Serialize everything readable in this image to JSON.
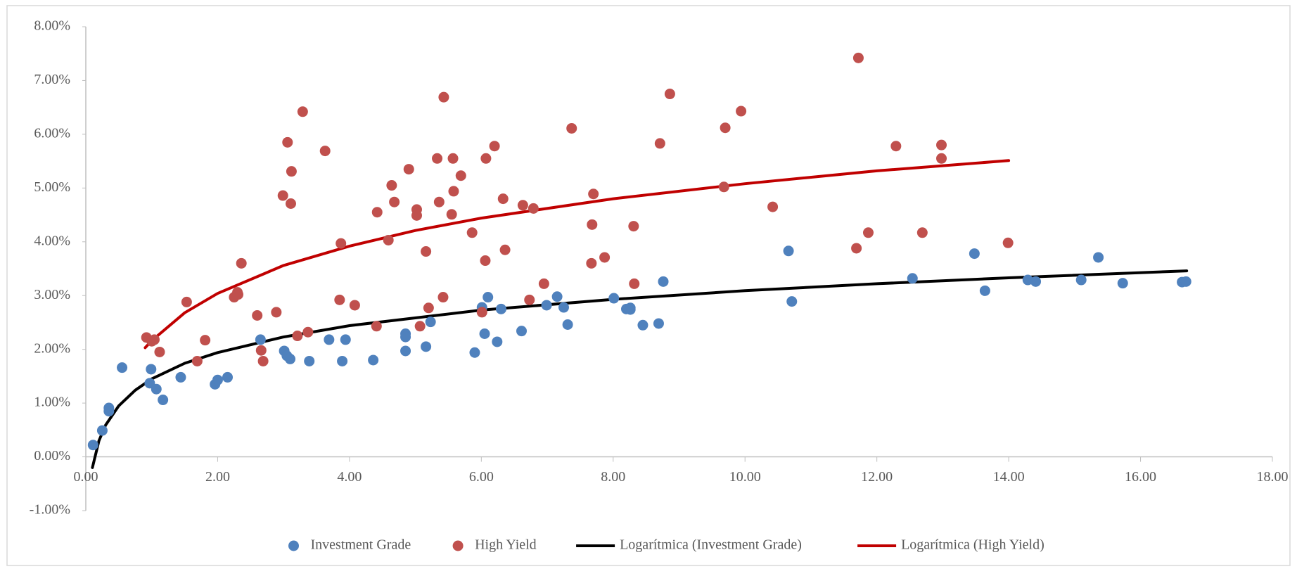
{
  "chart_data": {
    "type": "scatter",
    "xlim": [
      0,
      18
    ],
    "xticks": [
      {
        "value": 0,
        "label": "0.00"
      },
      {
        "value": 2,
        "label": "2.00"
      },
      {
        "value": 4,
        "label": "4.00"
      },
      {
        "value": 6,
        "label": "6.00"
      },
      {
        "value": 8,
        "label": "8.00"
      },
      {
        "value": 10,
        "label": "10.00"
      },
      {
        "value": 12,
        "label": "12.00"
      },
      {
        "value": 14,
        "label": "14.00"
      },
      {
        "value": 16,
        "label": "16.00"
      },
      {
        "value": 18,
        "label": "18.00"
      }
    ],
    "ylim": [
      -1,
      8
    ],
    "yticks": [
      {
        "value": -1,
        "label": "-1.00%"
      },
      {
        "value": 0,
        "label": "0.00%"
      },
      {
        "value": 1,
        "label": "1.00%"
      },
      {
        "value": 2,
        "label": "2.00%"
      },
      {
        "value": 3,
        "label": "3.00%"
      },
      {
        "value": 4,
        "label": "4.00%"
      },
      {
        "value": 5,
        "label": "5.00%"
      },
      {
        "value": 6,
        "label": "6.00%"
      },
      {
        "value": 7,
        "label": "7.00%"
      },
      {
        "value": 8,
        "label": "8.00%"
      }
    ],
    "grid": false,
    "legend": "bottom",
    "series": [
      {
        "name": "Investment Grade",
        "color": "#4f81bd",
        "mode": "points",
        "x": [
          0.11,
          0.25,
          0.35,
          0.35,
          0.55,
          0.97,
          0.99,
          1.07,
          1.17,
          1.44,
          1.96,
          2.0,
          2.15,
          2.65,
          3.01,
          3.05,
          3.1,
          3.39,
          3.69,
          3.89,
          3.94,
          4.36,
          4.85,
          4.85,
          4.85,
          5.16,
          5.23,
          5.9,
          6.01,
          6.05,
          6.1,
          6.24,
          6.3,
          6.61,
          6.99,
          7.15,
          7.25,
          7.31,
          8.01,
          8.2,
          8.26,
          8.26,
          8.45,
          8.69,
          8.76,
          10.66,
          10.71,
          12.54,
          13.48,
          13.64,
          14.29,
          14.41,
          15.1,
          15.36,
          15.73,
          16.63,
          16.69
        ],
        "values": [
          0.22,
          0.49,
          0.91,
          0.85,
          1.66,
          1.37,
          1.63,
          1.26,
          1.06,
          1.48,
          1.35,
          1.43,
          1.48,
          2.18,
          1.97,
          1.88,
          1.82,
          1.78,
          2.18,
          1.78,
          2.18,
          1.8,
          2.29,
          2.23,
          1.97,
          2.05,
          2.51,
          1.94,
          2.78,
          2.29,
          2.97,
          2.14,
          2.75,
          2.34,
          2.82,
          2.98,
          2.78,
          2.46,
          2.95,
          2.75,
          2.77,
          2.74,
          2.45,
          2.48,
          3.26,
          3.83,
          2.89,
          3.32,
          3.78,
          3.09,
          3.29,
          3.26,
          3.29,
          3.71,
          3.23,
          3.25,
          3.26
        ]
      },
      {
        "name": "High Yield",
        "color": "#c0504d",
        "mode": "points",
        "x": [
          0.92,
          1.0,
          1.04,
          1.12,
          1.53,
          1.69,
          1.81,
          2.25,
          2.3,
          2.31,
          2.36,
          2.6,
          2.66,
          2.69,
          2.89,
          2.99,
          3.06,
          3.11,
          3.12,
          3.21,
          3.29,
          3.37,
          3.63,
          3.85,
          3.87,
          4.08,
          4.41,
          4.42,
          4.59,
          4.64,
          4.68,
          4.9,
          5.02,
          5.02,
          5.07,
          5.16,
          5.2,
          5.33,
          5.36,
          5.42,
          5.43,
          5.55,
          5.57,
          5.58,
          5.69,
          5.86,
          6.01,
          6.06,
          6.07,
          6.2,
          6.33,
          6.36,
          6.63,
          6.73,
          6.79,
          6.95,
          7.37,
          7.67,
          7.68,
          7.7,
          7.87,
          8.31,
          8.32,
          8.71,
          8.86,
          9.68,
          9.7,
          9.94,
          10.42,
          11.69,
          11.72,
          11.87,
          12.29,
          12.69,
          12.98,
          12.98,
          13.99
        ],
        "values": [
          2.22,
          2.15,
          2.18,
          1.95,
          2.88,
          1.78,
          2.17,
          2.97,
          3.06,
          3.02,
          3.6,
          2.63,
          1.98,
          1.78,
          2.69,
          4.86,
          5.85,
          4.71,
          5.31,
          2.25,
          6.42,
          2.32,
          5.69,
          2.92,
          3.97,
          2.82,
          2.43,
          4.55,
          4.03,
          5.05,
          4.74,
          5.35,
          4.6,
          4.49,
          2.43,
          3.82,
          2.77,
          5.55,
          4.74,
          2.97,
          6.69,
          4.51,
          5.55,
          4.94,
          5.23,
          4.17,
          2.69,
          3.65,
          5.55,
          5.78,
          4.8,
          3.85,
          4.68,
          2.92,
          4.62,
          3.22,
          6.11,
          3.6,
          4.32,
          4.89,
          3.71,
          4.29,
          3.22,
          5.83,
          6.75,
          5.02,
          6.12,
          6.43,
          4.65,
          3.88,
          7.42,
          4.17,
          5.78,
          4.17,
          5.8,
          5.55,
          3.98
        ]
      },
      {
        "name": "Logarítmica (Investment Grade)",
        "color": "#000000",
        "mode": "line",
        "x": [
          0.1,
          0.2,
          0.3,
          0.5,
          0.75,
          1,
          1.5,
          2,
          3,
          4,
          6,
          8,
          10,
          12,
          14,
          16.7
        ],
        "values": [
          -0.2,
          0.3,
          0.59,
          0.95,
          1.24,
          1.45,
          1.74,
          1.94,
          2.23,
          2.44,
          2.73,
          2.93,
          3.09,
          3.22,
          3.33,
          3.46
        ]
      },
      {
        "name": "Logarítmica (High Yield)",
        "color": "#c00000",
        "mode": "line",
        "x": [
          0.9,
          1,
          1.5,
          2,
          3,
          4,
          5,
          6,
          8,
          10,
          12,
          14
        ],
        "values": [
          2.03,
          2.16,
          2.68,
          3.04,
          3.56,
          3.92,
          4.21,
          4.44,
          4.8,
          5.08,
          5.32,
          5.51
        ]
      }
    ]
  }
}
